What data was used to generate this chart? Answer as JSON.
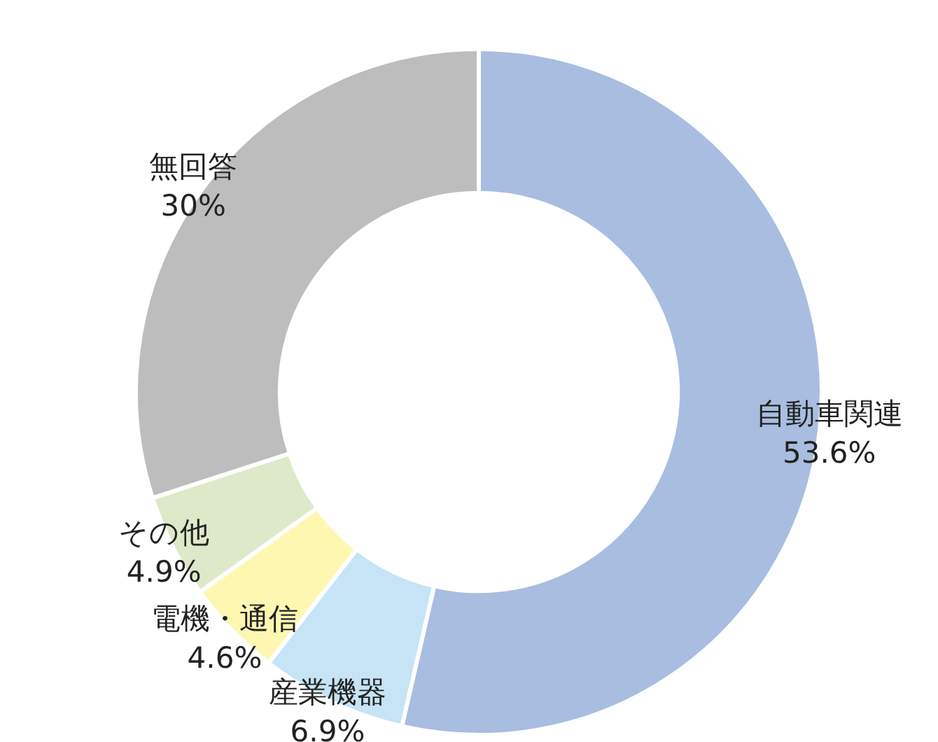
{
  "chart_data": {
    "type": "donut",
    "categories": [
      "自動車関連",
      "産業機器",
      "電機・通信",
      "その他",
      "無回答"
    ],
    "values": [
      53.6,
      6.9,
      4.6,
      4.9,
      30
    ],
    "value_labels": [
      "53.6%",
      "6.9%",
      "4.6%",
      "4.9%",
      "30%"
    ],
    "colors": [
      "#a9bde0",
      "#c6e4f6",
      "#fef7b2",
      "#dde9c9",
      "#bdbdbd"
    ]
  }
}
